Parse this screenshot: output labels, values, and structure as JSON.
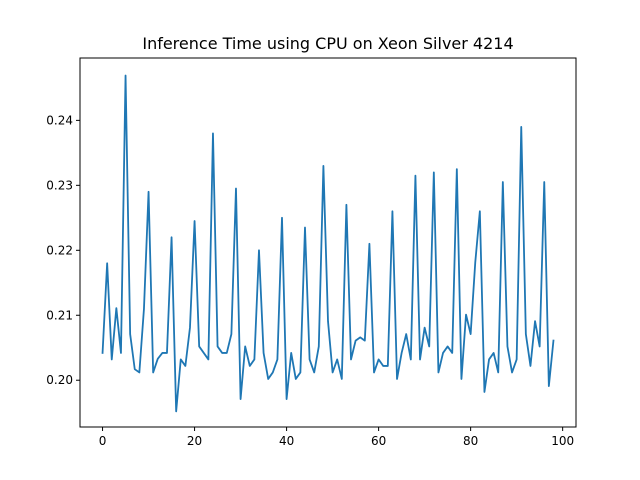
{
  "chart_data": {
    "type": "line",
    "title": "Inference Time using CPU on Xeon Silver 4214",
    "xlabel": "",
    "ylabel": "",
    "xlim": [
      -4.9,
      102.9
    ],
    "ylim": [
      0.1928,
      0.2496
    ],
    "xticks": [
      0,
      20,
      40,
      60,
      80,
      100
    ],
    "yticks": [
      0.2,
      0.21,
      0.22,
      0.23,
      0.24
    ],
    "xtick_labels": [
      "0",
      "20",
      "40",
      "60",
      "80",
      "100"
    ],
    "ytick_labels": [
      "0.20",
      "0.21",
      "0.22",
      "0.23",
      "0.24"
    ],
    "grid": false,
    "legend": "none",
    "series": [
      {
        "color": "#1f77b4",
        "x": [
          0,
          1,
          2,
          3,
          4,
          5,
          6,
          7,
          8,
          9,
          10,
          11,
          12,
          13,
          14,
          15,
          16,
          17,
          18,
          19,
          20,
          21,
          22,
          23,
          24,
          25,
          26,
          27,
          28,
          29,
          30,
          31,
          32,
          33,
          34,
          35,
          36,
          37,
          38,
          39,
          40,
          41,
          42,
          43,
          44,
          45,
          46,
          47,
          48,
          49,
          50,
          51,
          52,
          53,
          54,
          55,
          56,
          57,
          58,
          59,
          60,
          61,
          62,
          63,
          64,
          65,
          66,
          67,
          68,
          69,
          70,
          71,
          72,
          73,
          74,
          75,
          76,
          77,
          78,
          79,
          80,
          81,
          82,
          83,
          84,
          85,
          86,
          87,
          88,
          89,
          90,
          91,
          92,
          93,
          94,
          95,
          96,
          97,
          98
        ],
        "values": [
          0.2042,
          0.218,
          0.2032,
          0.2111,
          0.2042,
          0.2469,
          0.2071,
          0.2017,
          0.2012,
          0.211,
          0.229,
          0.2012,
          0.2033,
          0.2042,
          0.2042,
          0.222,
          0.1952,
          0.2032,
          0.2022,
          0.2081,
          0.2245,
          0.2052,
          0.2042,
          0.2032,
          0.238,
          0.2052,
          0.2042,
          0.2042,
          0.2071,
          0.2295,
          0.1971,
          0.2052,
          0.2022,
          0.2032,
          0.22,
          0.2042,
          0.2002,
          0.2012,
          0.2032,
          0.225,
          0.1971,
          0.2042,
          0.2002,
          0.2012,
          0.2235,
          0.2032,
          0.2012,
          0.2052,
          0.233,
          0.2091,
          0.2012,
          0.2032,
          0.2002,
          0.227,
          0.2032,
          0.2061,
          0.2066,
          0.2061,
          0.221,
          0.2012,
          0.2032,
          0.2022,
          0.2022,
          0.226,
          0.2002,
          0.2042,
          0.2071,
          0.2032,
          0.2315,
          0.2032,
          0.2081,
          0.2052,
          0.232,
          0.2012,
          0.2042,
          0.2052,
          0.2042,
          0.2325,
          0.2002,
          0.2101,
          0.2071,
          0.2181,
          0.226,
          0.1982,
          0.2032,
          0.2042,
          0.2012,
          0.2305,
          0.2052,
          0.2012,
          0.2032,
          0.239,
          0.2071,
          0.2022,
          0.2091,
          0.2052,
          0.2305,
          0.1991,
          0.2061
        ]
      }
    ]
  }
}
